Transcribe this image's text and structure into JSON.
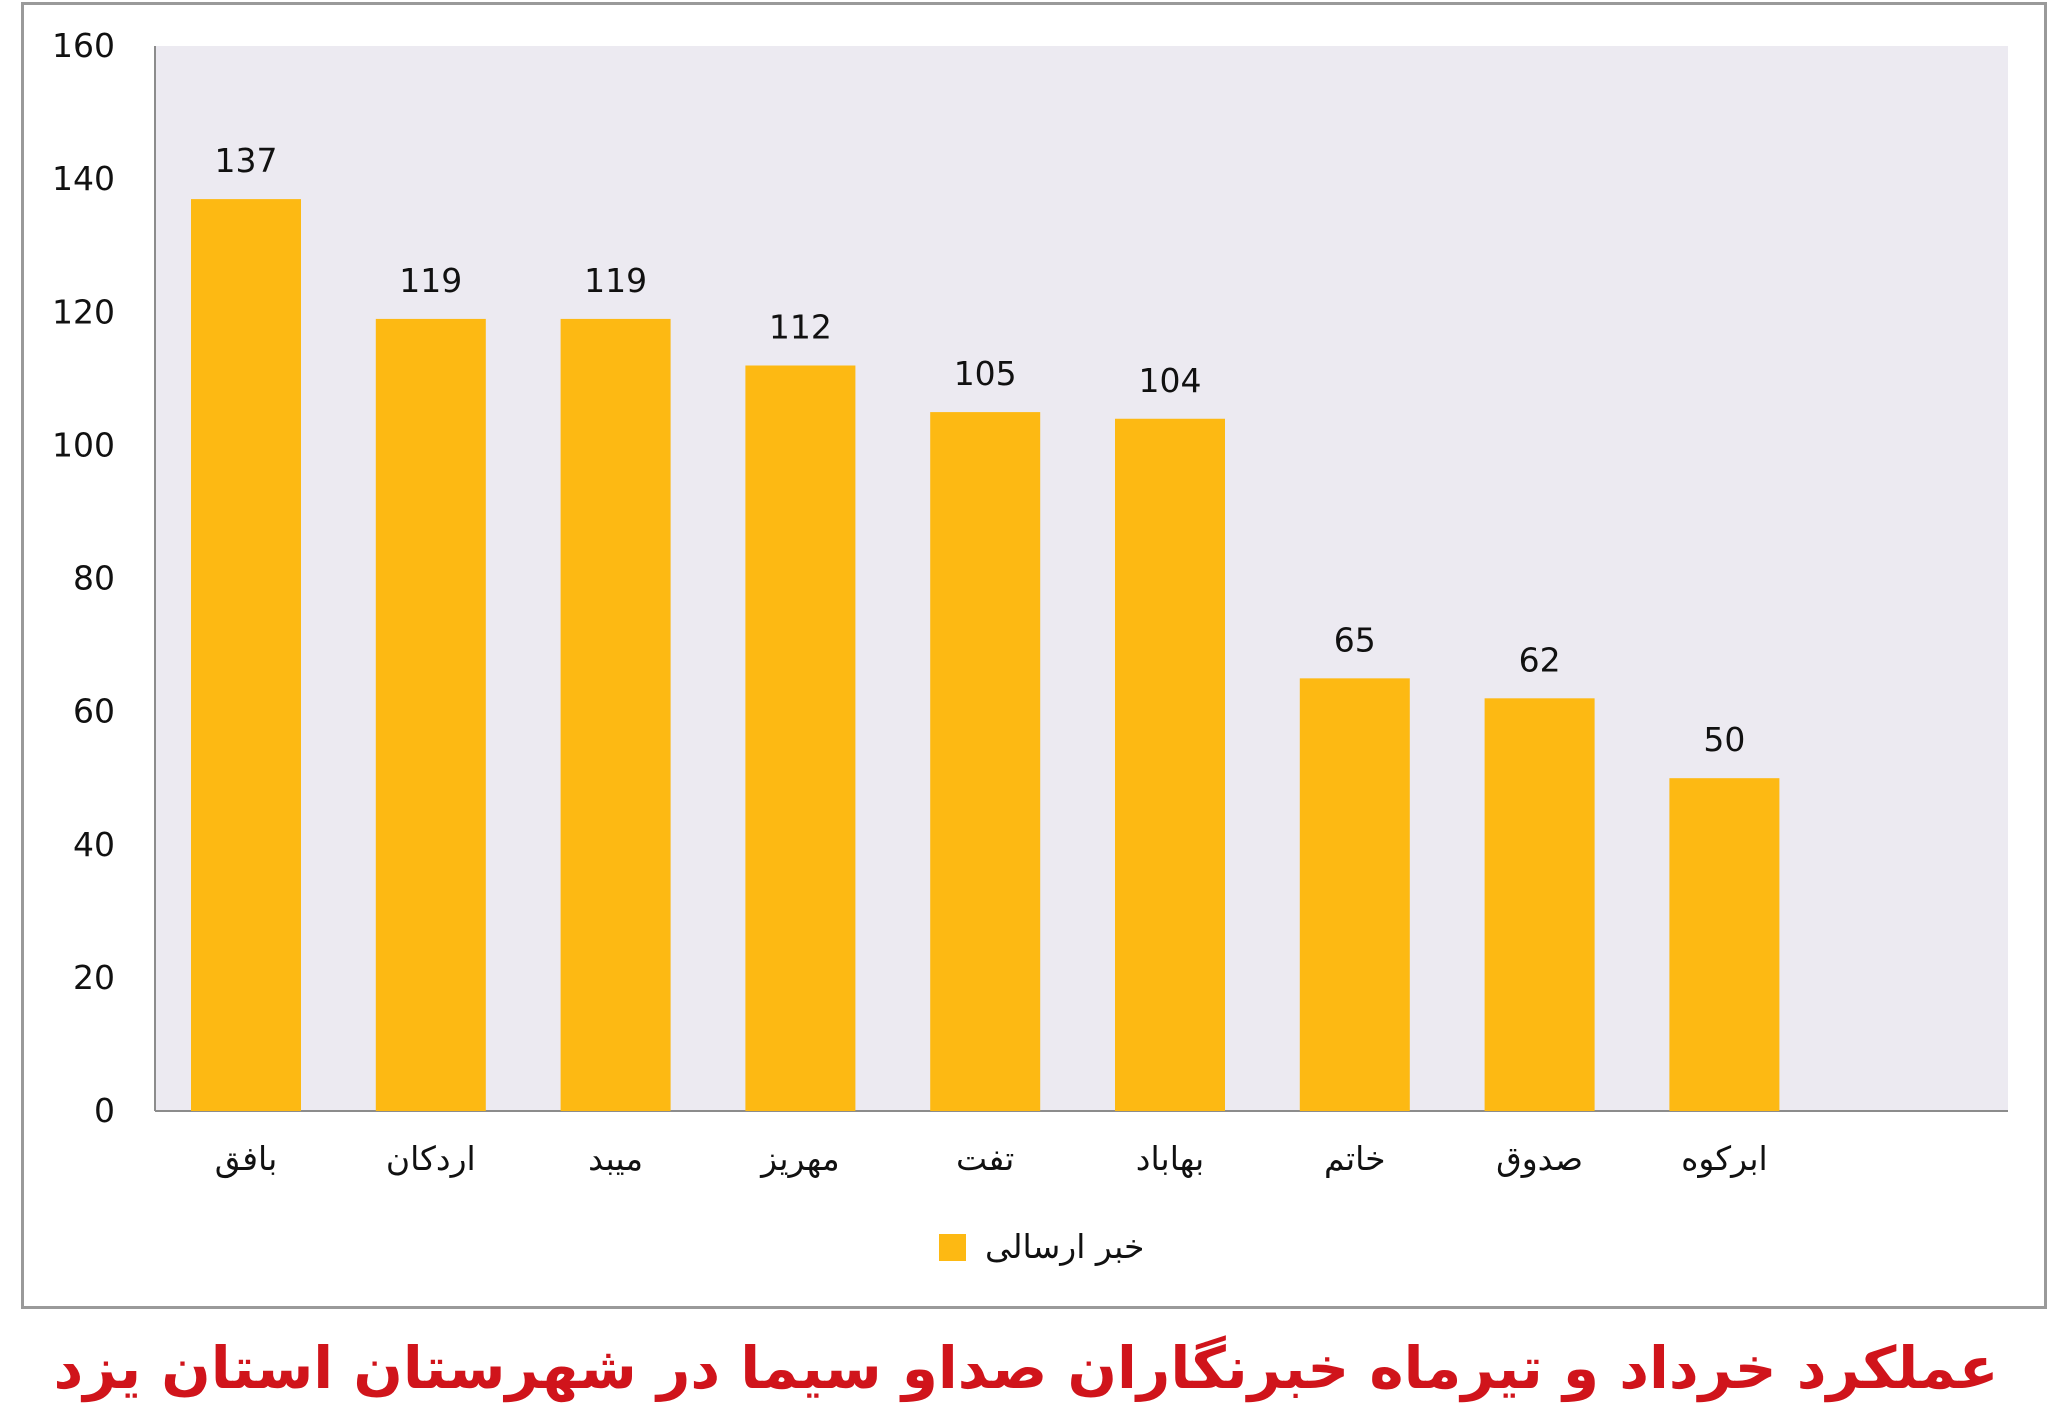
{
  "chart_data": {
    "type": "bar",
    "title": "عملکرد خرداد و تیرماه خبرنگاران صداو سیما در شهرستان استان یزد",
    "xlabel": "",
    "ylabel": "",
    "ylim": [
      0,
      160
    ],
    "yticks": [
      "0",
      "20",
      "40",
      "60",
      "80",
      "100",
      "120",
      "140",
      "160"
    ],
    "grid": false,
    "legend_position": "bottom",
    "categories": [
      "بافق",
      "اردکان",
      "میبد",
      "مهریز",
      "تفت",
      "بهاباد",
      "خاتم",
      "صدوق",
      "ابرکوه"
    ],
    "series": [
      {
        "name": "خبر ارسالی",
        "color": "#FDB913",
        "values": [
          137,
          119,
          119,
          112,
          105,
          104,
          65,
          62,
          50
        ]
      }
    ],
    "plot_background": "#ECEAF1"
  }
}
